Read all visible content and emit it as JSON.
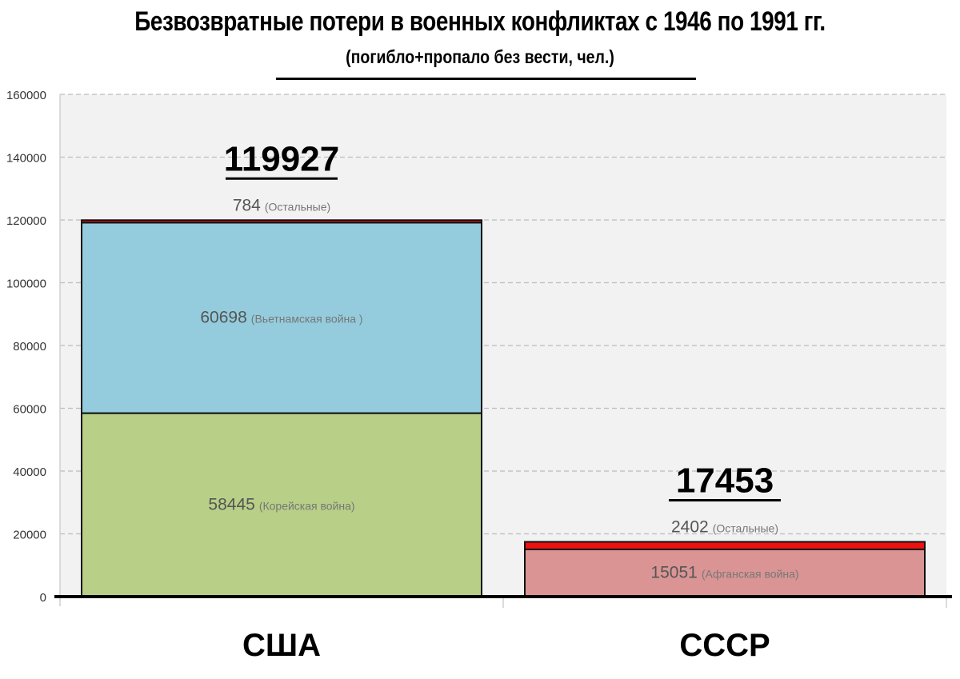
{
  "chart_data": {
    "type": "bar",
    "stacked": true,
    "title": "Безвозвратные потери в военных конфликтах с 1946 по 1991 гг.",
    "subtitle": "(погибло+пропало без вести, чел.)",
    "xlabel": "",
    "ylabel": "",
    "ylim": [
      0,
      160000
    ],
    "y_ticks": [
      "0",
      "20000",
      "40000",
      "60000",
      "80000",
      "100000",
      "120000",
      "140000",
      "160000"
    ],
    "grid": true,
    "categories": [
      "США",
      "СССР"
    ],
    "bars": [
      {
        "category": "США",
        "total_label": "119927",
        "segments": [
          {
            "value": 58445,
            "value_label": "58445",
            "name": "(Корейская война)",
            "color": "#b8cf87"
          },
          {
            "value": 60698,
            "value_label": "60698",
            "name": "(Вьетнамская война )",
            "color": "#94ccdd"
          },
          {
            "value": 784,
            "value_label": "784",
            "name": "(Остальные)",
            "color": "#ee1111"
          }
        ]
      },
      {
        "category": "СССР",
        "total_label": "17453",
        "segments": [
          {
            "value": 15051,
            "value_label": "15051",
            "name": "(Афганская война)",
            "color": "#da9494"
          },
          {
            "value": 2402,
            "value_label": "2402",
            "name": "(Остальные)",
            "color": "#ee1111"
          }
        ]
      }
    ]
  }
}
